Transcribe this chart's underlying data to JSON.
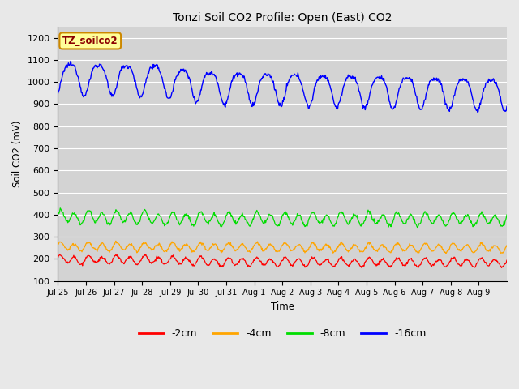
{
  "title": "Tonzi Soil CO2 Profile: Open (East) CO2",
  "ylabel": "Soil CO2 (mV)",
  "xlabel": "Time",
  "ylim": [
    100,
    1250
  ],
  "yticks": [
    100,
    200,
    300,
    400,
    500,
    600,
    700,
    800,
    900,
    1000,
    1100,
    1200
  ],
  "bg_color": "#e8e8e8",
  "plot_bg_color": "#d3d3d3",
  "annotation_label": "TZ_soilco2",
  "annotation_color": "#8b0000",
  "annotation_bg": "#ffff99",
  "annotation_border": "#cc8800",
  "xtick_labels": [
    "Jul 25",
    "Jul 26",
    "Jul 27",
    "Jul 28",
    "Jul 29",
    "Jul 30",
    "Jul 31",
    "Aug 1",
    "Aug 2",
    "Aug 3",
    "Aug 4",
    "Aug 5",
    "Aug 6",
    "Aug 7",
    "Aug 8",
    "Aug 9"
  ],
  "legend_items": [
    {
      "label": "-2cm",
      "color": "#ff0000"
    },
    {
      "label": "-4cm",
      "color": "#ffa500"
    },
    {
      "label": "-8cm",
      "color": "#00dd00"
    },
    {
      "label": "-16cm",
      "color": "#0000ff"
    }
  ]
}
